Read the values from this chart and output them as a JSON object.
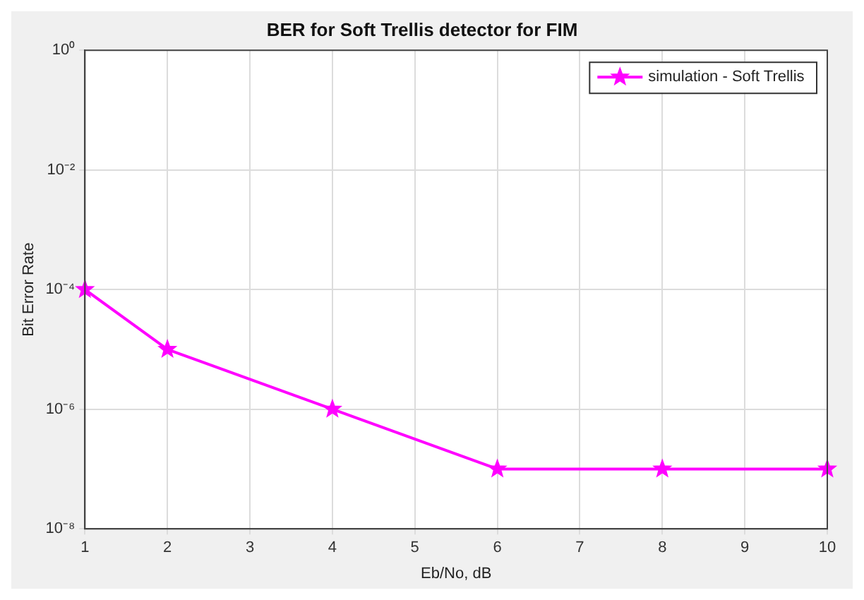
{
  "chart_data": {
    "type": "line",
    "title": "BER for Soft Trellis detector for FIM",
    "xlabel": "Eb/No, dB",
    "ylabel": "Bit Error Rate",
    "x": [
      1,
      2,
      4,
      6,
      8,
      10
    ],
    "series": [
      {
        "name": "simulation - Soft Trellis",
        "color": "#ff00ff",
        "values": [
          0.0001,
          1e-05,
          1e-06,
          1e-07,
          1e-07,
          1e-07
        ]
      }
    ],
    "xlim": [
      1,
      10
    ],
    "xticks": [
      1,
      2,
      3,
      4,
      5,
      6,
      7,
      8,
      9,
      10
    ],
    "ylim": [
      1e-08,
      1
    ],
    "yticks": [
      {
        "value": 1e-08,
        "label": "10⁻⁸"
      },
      {
        "value": 1e-06,
        "label": "10⁻⁶"
      },
      {
        "value": 0.0001,
        "label": "10⁻⁴"
      },
      {
        "value": 0.01,
        "label": "10⁻²"
      },
      {
        "value": 1,
        "label": "10⁰"
      }
    ],
    "log": "y",
    "grid": true,
    "legend": "top right",
    "marker": "star",
    "line_style": "solid"
  }
}
